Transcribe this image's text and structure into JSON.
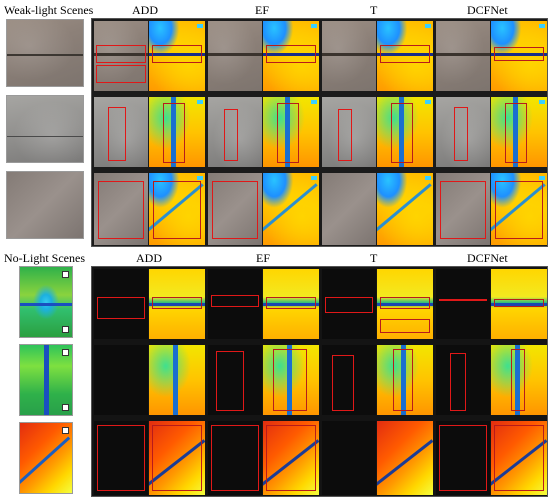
{
  "weak": {
    "title": "Weak-light Scenes",
    "methods": [
      "ADD",
      "EF",
      "T",
      "DCFNet"
    ]
  },
  "no": {
    "title": "No-Light Scenes",
    "methods": [
      "ADD",
      "EF",
      "T",
      "DCFNet"
    ]
  },
  "colors": {
    "box": "#e01818",
    "crack": "#1a2d88",
    "thermal_hot": "#ff9a00",
    "thermal_cool": "#1e90ff"
  }
}
